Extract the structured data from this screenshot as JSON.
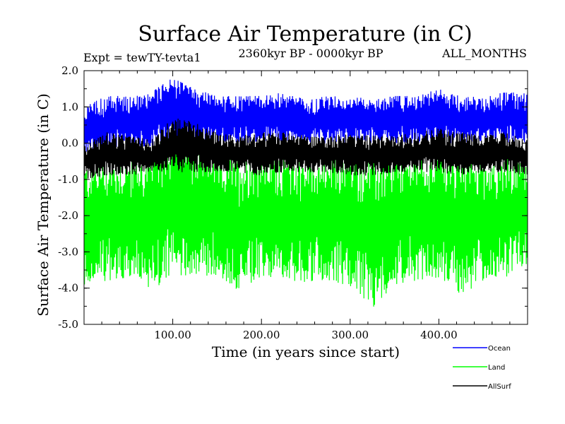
{
  "chart_data": {
    "type": "line",
    "title": "Surface Air Temperature (in C)",
    "subtitle_left": "Expt = tewTY-tevta1",
    "subtitle_center": "2360kyr BP - 0000kyr BP",
    "subtitle_right": "ALL_MONTHS",
    "xlabel": "Time (in years since start)",
    "ylabel": "Surface Air Temperature (in C)",
    "xlim": [
      0,
      500
    ],
    "ylim": [
      -5.0,
      2.0
    ],
    "x_ticks": [
      100,
      200,
      300,
      400
    ],
    "x_tick_labels": [
      "100.00",
      "200.00",
      "300.00",
      "400.00"
    ],
    "y_ticks": [
      2.0,
      1.0,
      0.0,
      -1.0,
      -2.0,
      -3.0,
      -4.0,
      -5.0
    ],
    "y_tick_labels": [
      "2.0",
      "1.0",
      "0.0",
      "-1.0",
      "-2.0",
      "-3.0",
      "-4.0",
      "-5.0"
    ],
    "series": [
      {
        "name": "Land",
        "color": "#00ff00",
        "x": [
          0,
          25,
          50,
          75,
          100,
          125,
          150,
          175,
          200,
          225,
          250,
          275,
          300,
          325,
          350,
          375,
          400,
          425,
          450,
          475,
          500
        ],
        "max": [
          -0.6,
          -0.5,
          -0.45,
          -0.4,
          0.6,
          0.2,
          -0.3,
          -0.4,
          -0.2,
          -0.3,
          -0.4,
          -0.4,
          -0.3,
          -0.5,
          -0.4,
          -0.3,
          -0.2,
          -0.3,
          -0.4,
          -0.4,
          -0.5
        ],
        "min": [
          -3.9,
          -3.8,
          -3.7,
          -4.0,
          -3.8,
          -3.6,
          -3.7,
          -4.1,
          -3.8,
          -3.7,
          -3.9,
          -3.8,
          -4.0,
          -4.55,
          -3.9,
          -3.8,
          -3.7,
          -4.2,
          -3.8,
          -3.7,
          -3.5
        ]
      },
      {
        "name": "Ocean",
        "color": "#0000ff",
        "x": [
          0,
          25,
          50,
          75,
          100,
          125,
          150,
          175,
          200,
          225,
          250,
          275,
          300,
          325,
          350,
          375,
          400,
          425,
          450,
          475,
          500
        ],
        "max": [
          1.0,
          1.3,
          1.3,
          1.4,
          1.8,
          1.5,
          1.3,
          1.3,
          1.3,
          1.4,
          1.2,
          1.3,
          1.3,
          1.2,
          1.3,
          1.3,
          1.5,
          1.3,
          1.3,
          1.4,
          1.4
        ],
        "min": [
          -0.3,
          -0.2,
          -0.1,
          -0.1,
          0.0,
          0.0,
          0.0,
          0.0,
          0.0,
          0.0,
          0.0,
          0.0,
          0.0,
          0.0,
          0.0,
          0.0,
          0.0,
          0.0,
          0.0,
          0.0,
          0.0
        ]
      },
      {
        "name": "AllSurf",
        "color": "#000000",
        "x": [
          0,
          25,
          50,
          75,
          100,
          125,
          150,
          175,
          200,
          225,
          250,
          275,
          300,
          325,
          350,
          375,
          400,
          425,
          450,
          475,
          500
        ],
        "max": [
          0.0,
          0.3,
          0.2,
          0.1,
          0.7,
          0.6,
          0.3,
          0.2,
          0.3,
          0.3,
          0.2,
          0.2,
          0.3,
          0.2,
          0.2,
          0.3,
          0.4,
          0.3,
          0.2,
          0.3,
          0.1
        ],
        "min": [
          -1.0,
          -0.9,
          -0.9,
          -0.8,
          -0.8,
          -0.8,
          -0.8,
          -0.8,
          -0.9,
          -0.8,
          -0.8,
          -0.8,
          -0.9,
          -0.9,
          -0.8,
          -0.8,
          -0.8,
          -0.9,
          -0.8,
          -0.8,
          -0.9
        ]
      }
    ],
    "legend": [
      {
        "name": "Ocean",
        "color": "#0000ff"
      },
      {
        "name": "Land",
        "color": "#00ff00"
      },
      {
        "name": "AllSurf",
        "color": "#000000"
      }
    ]
  }
}
